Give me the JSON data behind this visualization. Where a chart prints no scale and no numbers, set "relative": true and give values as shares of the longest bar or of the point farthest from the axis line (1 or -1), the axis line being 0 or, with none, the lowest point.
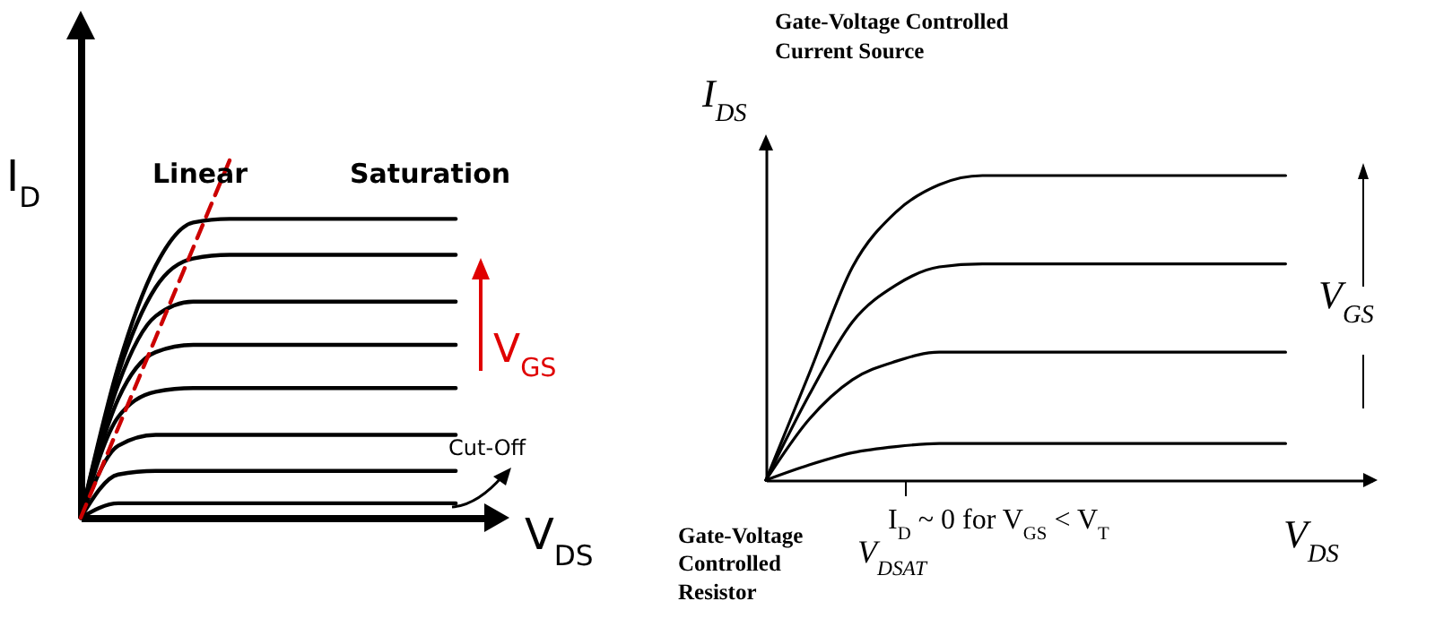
{
  "chart_data": [
    {
      "type": "line",
      "relative": true,
      "categories": [
        null,
        null,
        null,
        null,
        null,
        null,
        null,
        null,
        null,
        null,
        null,
        null
      ],
      "xlabel": "V$_{DS}$",
      "ylabel": "I$_{D}$",
      "grid": false,
      "tick_labels": false,
      "annotations": [
        "Linear",
        "Saturation",
        "V$_{GS}$",
        "Cut-Off"
      ],
      "series": [
        {
          "color": "#000000",
          "values": [
            0,
            0.42,
            0.7,
            0.82,
            0.83,
            0.83,
            0.83,
            0.83,
            0.83,
            0.83,
            0.83,
            null
          ]
        },
        {
          "color": "#000000",
          "values": [
            0,
            0.4,
            0.64,
            0.72,
            0.73,
            0.73,
            0.73,
            0.73,
            0.73,
            0.73,
            0.73,
            null
          ]
        },
        {
          "color": "#000000",
          "values": [
            0,
            0.37,
            0.56,
            0.6,
            0.6,
            0.6,
            0.6,
            0.6,
            0.6,
            0.6,
            0.6,
            null
          ]
        },
        {
          "color": "#000000",
          "values": [
            0,
            0.33,
            0.46,
            0.48,
            0.48,
            0.48,
            0.48,
            0.48,
            0.48,
            0.48,
            0.48,
            null
          ]
        },
        {
          "color": "#000000",
          "values": [
            0,
            0.28,
            0.35,
            0.36,
            0.36,
            0.36,
            0.36,
            0.36,
            0.36,
            0.36,
            0.36,
            null
          ]
        },
        {
          "color": "#000000",
          "values": [
            0,
            0.2,
            0.23,
            0.23,
            0.23,
            0.23,
            0.23,
            0.23,
            0.23,
            0.23,
            0.23,
            null
          ]
        },
        {
          "color": "#000000",
          "values": [
            0,
            0.12,
            0.13,
            0.13,
            0.13,
            0.13,
            0.13,
            0.13,
            0.13,
            0.13,
            0.13,
            null
          ]
        },
        {
          "color": "#000000",
          "values": [
            0,
            0.04,
            0.04,
            0.04,
            0.04,
            0.04,
            0.04,
            0.04,
            0.04,
            0.04,
            0.04,
            null
          ]
        },
        {
          "color": "#cc0000",
          "line_style": "dashed",
          "values": [
            0,
            0.25,
            0.5,
            0.75,
            1,
            null,
            null,
            null,
            null,
            null,
            null,
            null
          ]
        }
      ]
    },
    {
      "type": "line",
      "relative": true,
      "categories": [
        null,
        null,
        null,
        null,
        null,
        null,
        null,
        null,
        null,
        null,
        null,
        null,
        null,
        null,
        null
      ],
      "title": "Gate-Voltage Controlled Current Source",
      "xlabel": "V$_{DS}$",
      "ylabel": "I$_{DS}$",
      "grid": false,
      "tick_labels": false,
      "annotations": [
        "V$_{GS}$",
        "I$_{D}$ ~ 0 for V$_{GS}$ < V$_{T}$",
        "V$_{DSAT}$",
        "Gate-Voltage Controlled Resistor"
      ],
      "series": [
        {
          "color": "#000000",
          "values": [
            0,
            0.35,
            0.7,
            0.88,
            0.97,
            1,
            1,
            1,
            1,
            1,
            1,
            1,
            1,
            null,
            null
          ]
        },
        {
          "color": "#000000",
          "values": [
            0,
            0.28,
            0.52,
            0.64,
            0.7,
            0.71,
            0.71,
            0.71,
            0.71,
            0.71,
            0.71,
            0.71,
            0.71,
            null,
            null
          ]
        },
        {
          "color": "#000000",
          "values": [
            0,
            0.2,
            0.33,
            0.39,
            0.42,
            0.42,
            0.42,
            0.42,
            0.42,
            0.42,
            0.42,
            0.42,
            0.42,
            null,
            null
          ]
        },
        {
          "color": "#000000",
          "values": [
            0,
            0.05,
            0.09,
            0.11,
            0.12,
            0.12,
            0.12,
            0.12,
            0.12,
            0.12,
            0.12,
            0.12,
            0.12,
            null,
            null
          ]
        }
      ]
    }
  ]
}
